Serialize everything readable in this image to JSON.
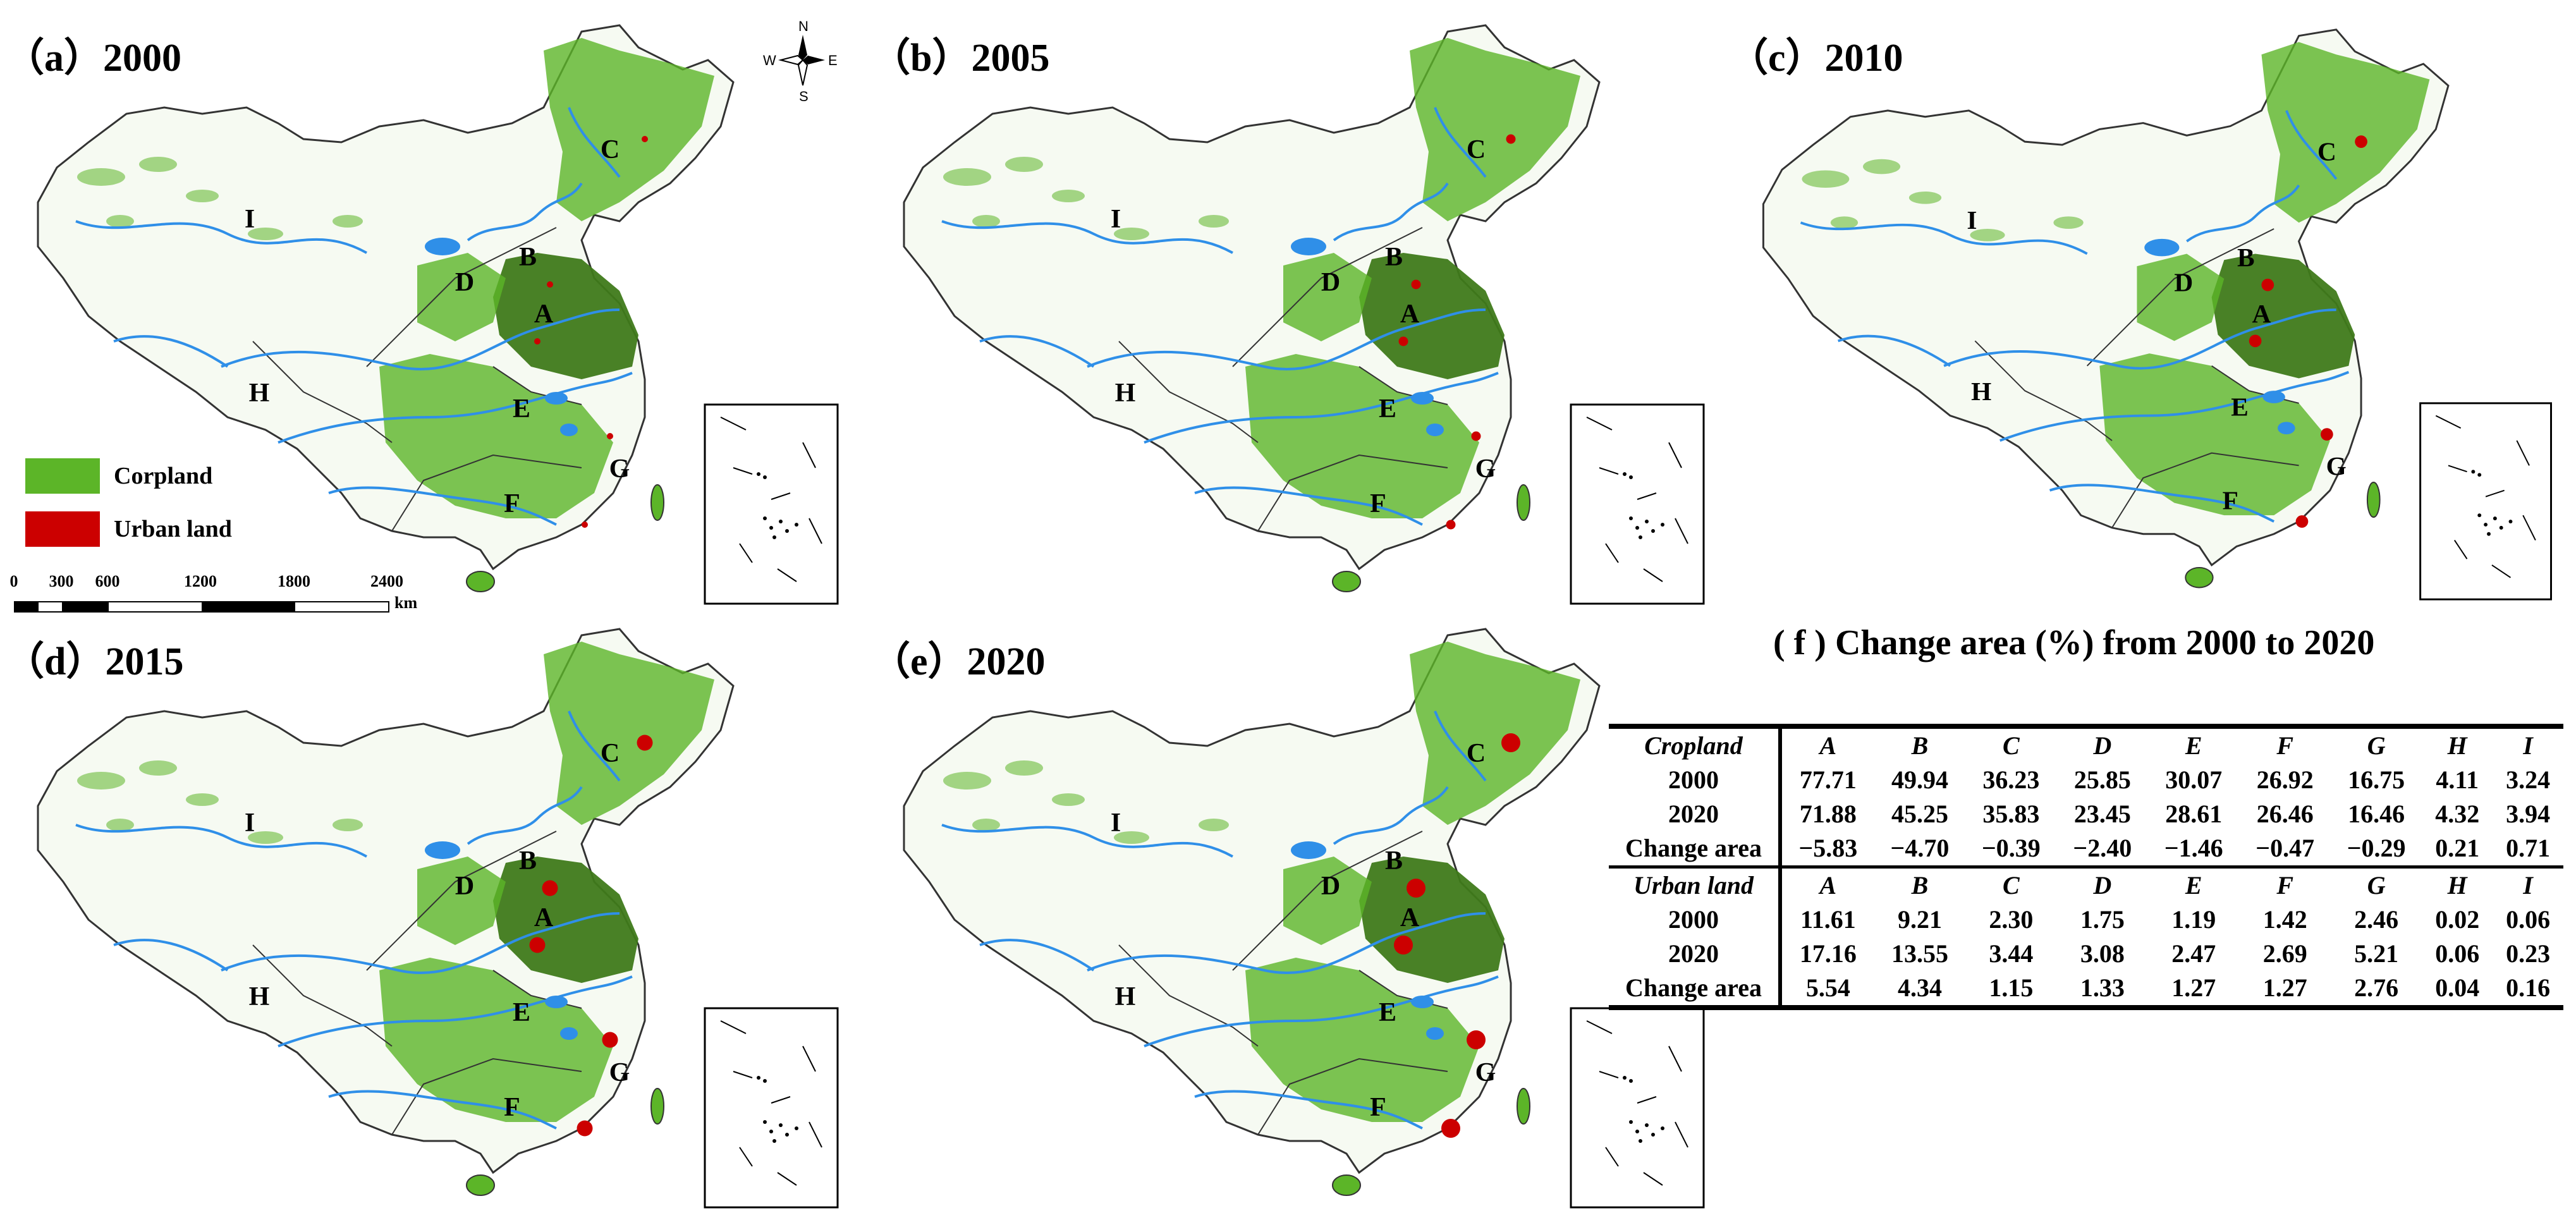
{
  "panels": [
    {
      "label": "（a）2000"
    },
    {
      "label": "（b）2005"
    },
    {
      "label": "（c）2010"
    },
    {
      "label": "（d）2015"
    },
    {
      "label": "（e）2020"
    }
  ],
  "region_labels": [
    "A",
    "B",
    "C",
    "D",
    "E",
    "F",
    "G",
    "H",
    "I"
  ],
  "legend": {
    "cropland": {
      "label": "Corpland",
      "color": "#5cb528"
    },
    "urban": {
      "label": "Urban land",
      "color": "#cc0000"
    }
  },
  "compass": {
    "n": "N",
    "s": "S",
    "e": "E",
    "w": "W"
  },
  "scale_bar": {
    "ticks": [
      "0",
      "300",
      "600",
      "1200",
      "1800",
      "2400"
    ],
    "unit": "km"
  },
  "colors": {
    "river": "#2f8fe8",
    "border": "#333333",
    "cropland_dark": "#3f7a1a"
  },
  "table": {
    "title": "( f ) Change area (%) from  2000 to 2020",
    "columns": [
      "A",
      "B",
      "C",
      "D",
      "E",
      "F",
      "G",
      "H",
      "I"
    ],
    "cropland": {
      "header": "Cropland",
      "rows": [
        {
          "label": "2000",
          "values": [
            "77.71",
            "49.94",
            "36.23",
            "25.85",
            "30.07",
            "26.92",
            "16.75",
            "4.11",
            "3.24"
          ]
        },
        {
          "label": "2020",
          "values": [
            "71.88",
            "45.25",
            "35.83",
            "23.45",
            "28.61",
            "26.46",
            "16.46",
            "4.32",
            "3.94"
          ]
        },
        {
          "label": "Change area",
          "values": [
            "−5.83",
            "−4.70",
            "−0.39",
            "−2.40",
            "−1.46",
            "−0.47",
            "−0.29",
            "0.21",
            "0.71"
          ]
        }
      ]
    },
    "urban": {
      "header": "Urban land",
      "rows": [
        {
          "label": "2000",
          "values": [
            "11.61",
            "9.21",
            "2.30",
            "1.75",
            "1.19",
            "1.42",
            "2.46",
            "0.02",
            "0.06"
          ]
        },
        {
          "label": "2020",
          "values": [
            "17.16",
            "13.55",
            "3.44",
            "3.08",
            "2.47",
            "2.69",
            "5.21",
            "0.06",
            "0.23"
          ]
        },
        {
          "label": "Change area",
          "values": [
            "5.54",
            "4.34",
            "1.15",
            "1.33",
            "1.27",
            "1.27",
            "2.76",
            "0.04",
            "0.16"
          ]
        }
      ]
    }
  }
}
